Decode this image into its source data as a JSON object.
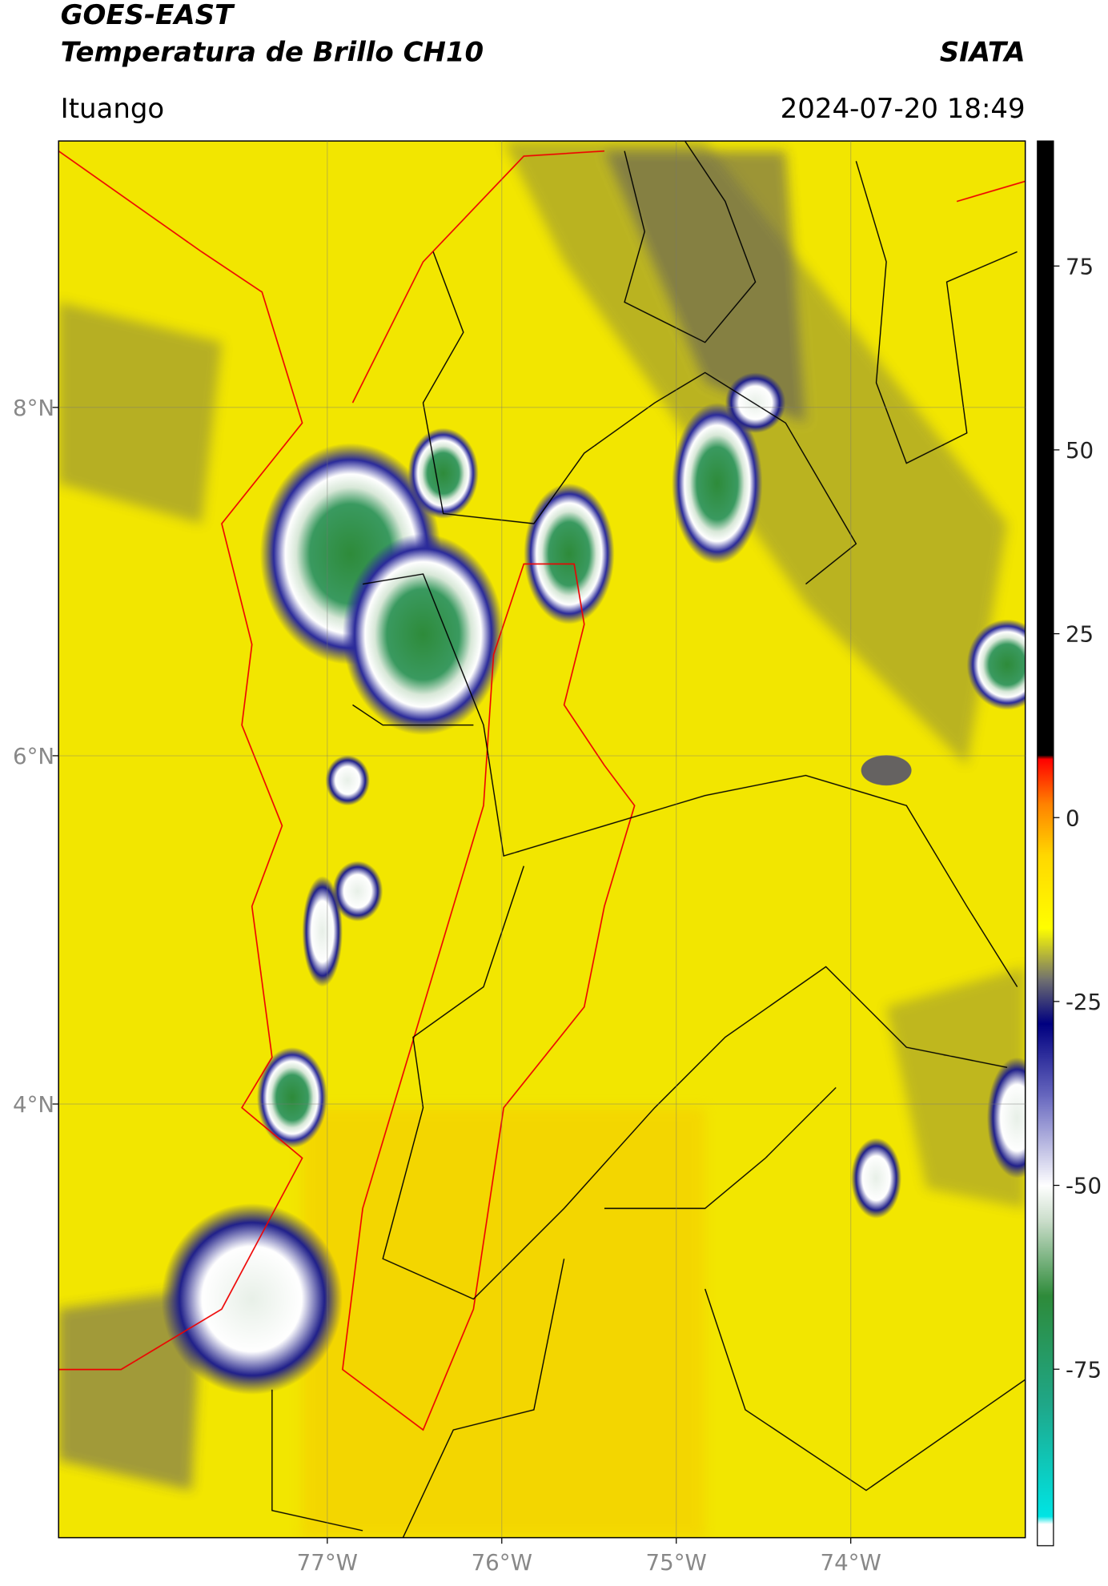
{
  "header": {
    "title": "GOES-EAST",
    "subtitle": "Temperatura de Brillo CH10",
    "brand": "SIATA",
    "location": "Ituango",
    "timestamp": "2024-07-20 18:49"
  },
  "map": {
    "type": "map",
    "xlim": [
      -78.54,
      -73.0
    ],
    "ylim": [
      1.51,
      9.53
    ],
    "xticks": [
      {
        "value": -77,
        "label": "77°W"
      },
      {
        "value": -76,
        "label": "76°W"
      },
      {
        "value": -75,
        "label": "75°W"
      },
      {
        "value": -74,
        "label": "74°W"
      }
    ],
    "yticks": [
      {
        "value": 8,
        "label": "8°N"
      },
      {
        "value": 6,
        "label": "6°N"
      },
      {
        "value": 4,
        "label": "4°N"
      }
    ],
    "grid": true
  },
  "colorbar": {
    "lim": [
      -99,
      92
    ],
    "ticks": [
      75,
      50,
      25,
      0,
      -25,
      -50,
      -75
    ],
    "colormap": [
      {
        "value": -99,
        "color": "#ffffff"
      },
      {
        "value": -96,
        "color": "#ffffff"
      },
      {
        "value": -95,
        "color": "#00e5e5"
      },
      {
        "value": -80,
        "color": "#1fa88a"
      },
      {
        "value": -65,
        "color": "#2e8b3a"
      },
      {
        "value": -55,
        "color": "#c8dcc8"
      },
      {
        "value": -50,
        "color": "#ffffff"
      },
      {
        "value": -38,
        "color": "#6a6ac0"
      },
      {
        "value": -28,
        "color": "#000080"
      },
      {
        "value": -22,
        "color": "#707070"
      },
      {
        "value": -15,
        "color": "#ffff00"
      },
      {
        "value": -5,
        "color": "#ffd700"
      },
      {
        "value": 2,
        "color": "#ff8000"
      },
      {
        "value": 8,
        "color": "#ff0000"
      },
      {
        "value": 8.5,
        "color": "#000000"
      },
      {
        "value": 92,
        "color": "#000000"
      }
    ]
  }
}
